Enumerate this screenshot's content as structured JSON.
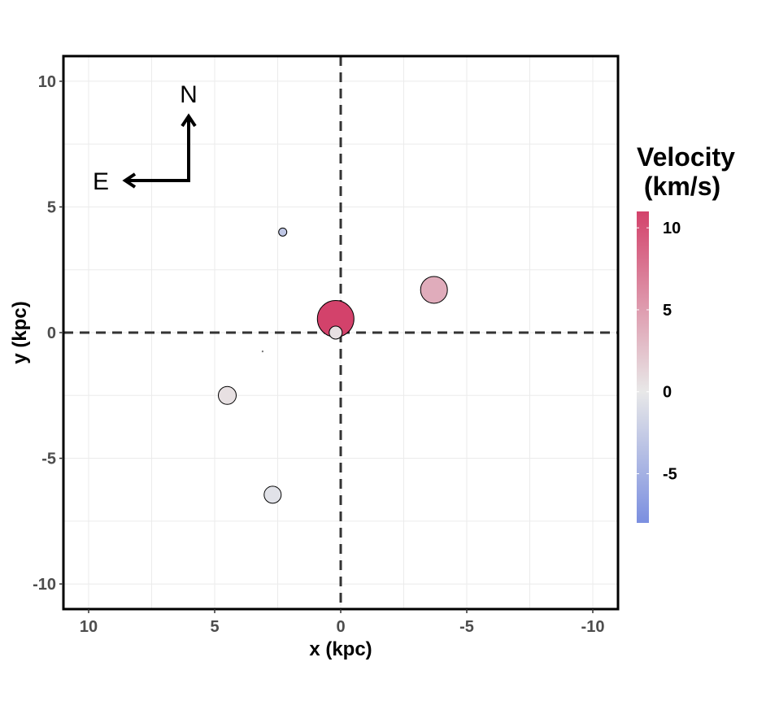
{
  "chart_data": {
    "type": "scatter",
    "xlabel": "x (kpc)",
    "ylabel": "y (kpc)",
    "xlim": [
      11,
      -11
    ],
    "ylim": [
      -11,
      11
    ],
    "xticks": [
      10,
      5,
      0,
      -5,
      -10
    ],
    "yticks": [
      10,
      5,
      0,
      -5,
      -10
    ],
    "xtick_labels": [
      "10",
      "5",
      "0",
      "-5",
      "-10"
    ],
    "ytick_labels": [
      "10",
      "5",
      "0",
      "-5",
      "-10"
    ],
    "grid": true,
    "reference_lines": {
      "x": 0,
      "y": 0,
      "style": "dashed"
    },
    "points": [
      {
        "x": 2.3,
        "y": 4.0,
        "size": 1.0,
        "velocity": -3.0
      },
      {
        "x": -3.7,
        "y": 1.7,
        "size": 3.3,
        "velocity": 4.0
      },
      {
        "x": 0.2,
        "y": 0.55,
        "size": 4.5,
        "velocity": 11.0
      },
      {
        "x": 0.2,
        "y": 0.0,
        "size": 1.6,
        "velocity": 0.5
      },
      {
        "x": 4.5,
        "y": -2.5,
        "size": 2.2,
        "velocity": 0.5
      },
      {
        "x": 2.7,
        "y": -6.45,
        "size": 2.1,
        "velocity": -0.5
      },
      {
        "x": 3.1,
        "y": -0.75,
        "size": 0.05,
        "velocity": 0.0
      }
    ],
    "colorbar": {
      "title_line1": "Velocity",
      "title_line2": " (km/s)",
      "min": -8,
      "max": 11,
      "ticks": [
        10,
        5,
        0,
        -5
      ],
      "tick_labels": [
        "10",
        "5",
        "0",
        "-5"
      ],
      "color_low": "#7b8fe0",
      "color_mid": "#e8e8e8",
      "color_high": "#d3426b"
    },
    "compass": {
      "north_label": "N",
      "east_label": "E"
    }
  }
}
